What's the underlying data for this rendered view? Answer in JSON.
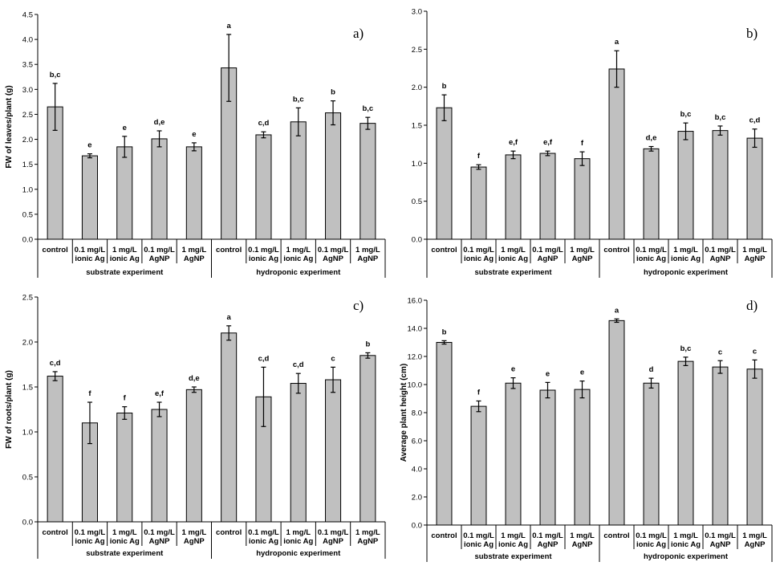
{
  "chart_data": [
    {
      "type": "bar",
      "panel_label": "a)",
      "ylabel": "FW of leaves/plant (g)",
      "ylim": [
        0,
        4.5
      ],
      "yticks": [
        "0.0",
        "0.5",
        "1.0",
        "1.5",
        "2.0",
        "2.5",
        "3.0",
        "3.5",
        "4.0",
        "4.5"
      ],
      "categories": [
        [
          "control"
        ],
        [
          "0.1 mg/L",
          "ionic Ag"
        ],
        [
          "1 mg/L",
          "ionic Ag"
        ],
        [
          "0.1 mg/L",
          "AgNP"
        ],
        [
          "1 mg/L",
          "AgNP"
        ],
        [
          "control"
        ],
        [
          "0.1 mg/L",
          "ionic Ag"
        ],
        [
          "1 mg/L",
          "ionic Ag"
        ],
        [
          "0.1 mg/L",
          "AgNP"
        ],
        [
          "1 mg/L",
          "AgNP"
        ]
      ],
      "groups": [
        "substrate experiment",
        "hydroponic experiment"
      ],
      "values": [
        2.65,
        1.67,
        1.85,
        2.01,
        1.85,
        3.43,
        2.09,
        2.35,
        2.53,
        2.32
      ],
      "errors": [
        0.47,
        0.04,
        0.21,
        0.16,
        0.08,
        0.67,
        0.06,
        0.28,
        0.24,
        0.12
      ],
      "letters": [
        "b,c",
        "e",
        "e",
        "d,e",
        "e",
        "a",
        "c,d",
        "b,c",
        "b",
        "b,c"
      ],
      "grid": false,
      "color": "#c0c0c0"
    },
    {
      "type": "bar",
      "panel_label": "b)",
      "ylabel": "",
      "ylim": [
        0,
        3.0
      ],
      "yticks": [
        "0.0",
        "0.5",
        "1.0",
        "1.5",
        "2.0",
        "2.5",
        "3.0"
      ],
      "categories": [
        [
          "control"
        ],
        [
          "0.1 mg/L",
          "ionic Ag"
        ],
        [
          "1 mg/L",
          "ionic Ag"
        ],
        [
          "0.1 mg/L",
          "AgNP"
        ],
        [
          "1 mg/L",
          "AgNP"
        ],
        [
          "control"
        ],
        [
          "0.1 mg/L",
          "ionic Ag"
        ],
        [
          "1 mg/L",
          "ionic Ag"
        ],
        [
          "0.1 mg/L",
          "AgNP"
        ],
        [
          "1 mg/L",
          "AgNP"
        ]
      ],
      "groups": [
        "substrate experiment",
        "hydroponic experiment"
      ],
      "values": [
        1.73,
        0.95,
        1.11,
        1.13,
        1.06,
        2.24,
        1.19,
        1.42,
        1.43,
        1.33
      ],
      "errors": [
        0.17,
        0.03,
        0.05,
        0.03,
        0.09,
        0.24,
        0.03,
        0.11,
        0.06,
        0.12
      ],
      "letters": [
        "b",
        "f",
        "e,f",
        "e,f",
        "f",
        "a",
        "d,e",
        "b,c",
        "b,c",
        "c,d"
      ],
      "grid": false,
      "color": "#c0c0c0"
    },
    {
      "type": "bar",
      "panel_label": "c)",
      "ylabel": "FW of roots/plant (g)",
      "ylim": [
        0,
        2.5
      ],
      "yticks": [
        "0.0",
        "0.5",
        "1.0",
        "1.5",
        "2.0",
        "2.5"
      ],
      "categories": [
        [
          "control"
        ],
        [
          "0.1 mg/L",
          "ionic Ag"
        ],
        [
          "1 mg/L",
          "ionic Ag"
        ],
        [
          "0.1 mg/L",
          "AgNP"
        ],
        [
          "1 mg/L",
          "AgNP"
        ],
        [
          "control"
        ],
        [
          "0.1 mg/L",
          "ionic Ag"
        ],
        [
          "1 mg/L",
          "ionic Ag"
        ],
        [
          "0.1 mg/L",
          "AgNP"
        ],
        [
          "1 mg/L",
          "AgNP"
        ]
      ],
      "groups": [
        "substrate experiment",
        "hydroponic experiment"
      ],
      "values": [
        1.62,
        1.1,
        1.21,
        1.25,
        1.47,
        2.1,
        1.39,
        1.54,
        1.58,
        1.85
      ],
      "errors": [
        0.05,
        0.23,
        0.07,
        0.08,
        0.03,
        0.08,
        0.33,
        0.11,
        0.14,
        0.03
      ],
      "letters": [
        "c,d",
        "f",
        "f",
        "e,f",
        "d,e",
        "a",
        "c,d",
        "c,d",
        "c",
        "b"
      ],
      "grid": false,
      "color": "#c0c0c0"
    },
    {
      "type": "bar",
      "panel_label": "d)",
      "ylabel": "Average plant height (cm)",
      "ylim": [
        0,
        16
      ],
      "yticks": [
        "0.0",
        "2.0",
        "4.0",
        "6.0",
        "8.0",
        "10.0",
        "12.0",
        "14.0",
        "16.0"
      ],
      "categories": [
        [
          "control"
        ],
        [
          "0.1 mg/L",
          "ionic Ag"
        ],
        [
          "1 mg/L",
          "ionic Ag"
        ],
        [
          "0.1 mg/L",
          "AgNP"
        ],
        [
          "1 mg/L",
          "AgNP"
        ],
        [
          "control"
        ],
        [
          "0.1 mg/L",
          "ionic Ag"
        ],
        [
          "1 mg/L",
          "ionic Ag"
        ],
        [
          "0.1 mg/L",
          "AgNP"
        ],
        [
          "1 mg/L",
          "AgNP"
        ]
      ],
      "groups": [
        "substrate experiment",
        "hydroponic experiment"
      ],
      "values": [
        13.0,
        8.45,
        10.1,
        9.6,
        9.65,
        14.55,
        10.1,
        11.65,
        11.25,
        11.1
      ],
      "errors": [
        0.12,
        0.38,
        0.38,
        0.55,
        0.6,
        0.12,
        0.35,
        0.3,
        0.45,
        0.65
      ],
      "letters": [
        "b",
        "f",
        "e",
        "e",
        "e",
        "a",
        "d",
        "b,c",
        "c",
        "c"
      ],
      "grid": false,
      "color": "#c0c0c0"
    }
  ]
}
